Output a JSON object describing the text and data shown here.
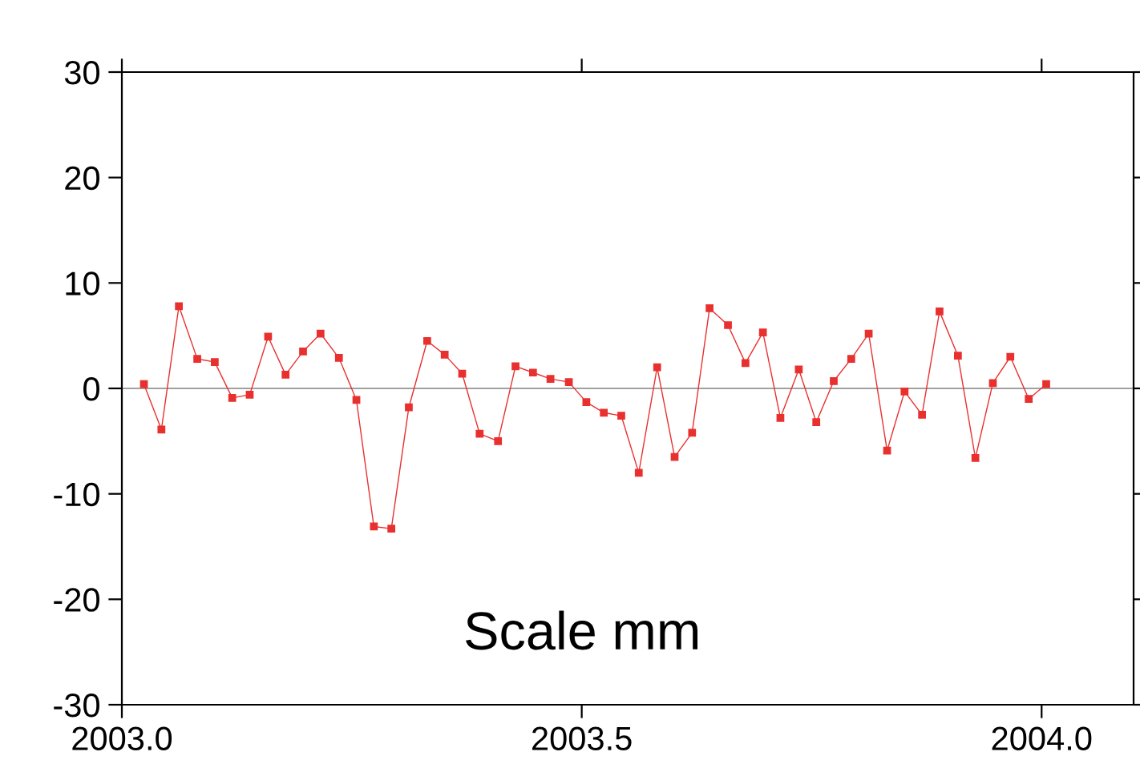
{
  "chart_data": {
    "type": "line",
    "marker": "square",
    "line_style": "solid",
    "grid": false,
    "legend": false,
    "xlim": [
      2003.0,
      2004.1
    ],
    "xticks": [
      {
        "value": 2003.0,
        "label": "2003.0"
      },
      {
        "value": 2003.5,
        "label": "2003.5"
      },
      {
        "value": 2004.0,
        "label": "2004.0"
      }
    ],
    "ylim": [
      -30,
      30
    ],
    "yticks": [
      -30,
      -20,
      -10,
      0,
      10,
      20,
      30
    ],
    "ref_lines": [
      {
        "axis": "y",
        "value": 0,
        "color": "#a0a0a0"
      }
    ],
    "annotations": [
      "Scale mm"
    ],
    "series": [
      {
        "color": "#e8302f",
        "x": [
          2003.024,
          2003.043,
          2003.062,
          2003.082,
          2003.101,
          2003.12,
          2003.139,
          2003.159,
          2003.178,
          2003.197,
          2003.216,
          2003.236,
          2003.255,
          2003.274,
          2003.293,
          2003.312,
          2003.332,
          2003.351,
          2003.37,
          2003.389,
          2003.409,
          2003.428,
          2003.447,
          2003.466,
          2003.486,
          2003.505,
          2003.524,
          2003.543,
          2003.562,
          2003.582,
          2003.601,
          2003.62,
          2003.639,
          2003.659,
          2003.678,
          2003.697,
          2003.716,
          2003.736,
          2003.755,
          2003.774,
          2003.793,
          2003.812,
          2003.832,
          2003.851,
          2003.87,
          2003.889,
          2003.909,
          2003.928,
          2003.947,
          2003.966,
          2003.986,
          2004.005
        ],
        "values": [
          0.4,
          -3.9,
          7.8,
          2.8,
          2.5,
          -0.9,
          -0.6,
          4.9,
          1.3,
          3.5,
          5.2,
          2.9,
          -1.1,
          -13.1,
          -13.3,
          -1.8,
          4.5,
          3.2,
          1.4,
          -4.3,
          -5.0,
          2.1,
          1.5,
          0.9,
          0.6,
          -1.3,
          -2.3,
          -2.6,
          -8.0,
          2.0,
          -6.5,
          -4.2,
          7.6,
          6.0,
          2.4,
          5.3,
          -2.8,
          1.8,
          -3.2,
          0.7,
          2.8,
          5.2,
          -5.9,
          -0.3,
          -2.5,
          7.3,
          3.1,
          -6.6,
          0.5,
          3.0,
          -1.0,
          0.4
        ]
      }
    ]
  }
}
